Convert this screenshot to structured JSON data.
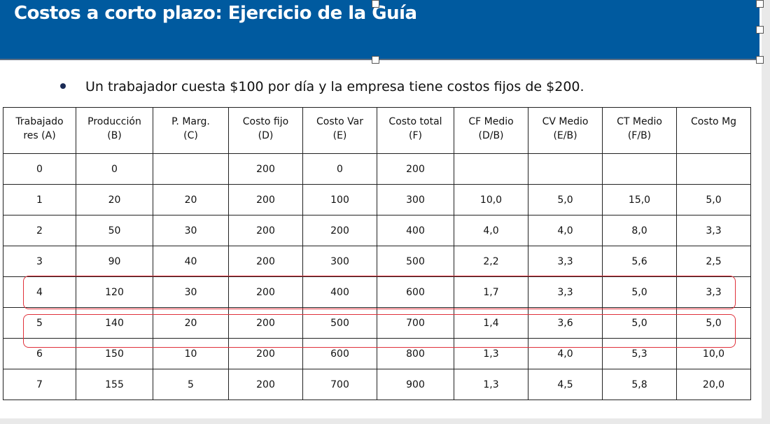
{
  "title": "Costos a corto plazo: Ejercicio de la Guía",
  "bullet": "Un trabajador cuesta $100 por día y la empresa tiene costos fijos de $200.",
  "colors": {
    "title_bar": "#005a9f",
    "highlight": "#e0303a"
  },
  "table": {
    "headers": [
      [
        "Trabajado",
        "res (A)"
      ],
      [
        "Producción",
        "(B)"
      ],
      [
        "P. Marg.",
        "(C)"
      ],
      [
        "Costo fijo",
        "(D)"
      ],
      [
        "Costo Var",
        "(E)"
      ],
      [
        "Costo total",
        "(F)"
      ],
      [
        "CF Medio",
        "(D/B)"
      ],
      [
        "CV Medio",
        "(E/B)"
      ],
      [
        "CT Medio",
        "(F/B)"
      ],
      [
        "Costo Mg",
        ""
      ]
    ],
    "rows": [
      [
        "0",
        "0",
        "",
        "200",
        "0",
        "200",
        "",
        "",
        "",
        ""
      ],
      [
        "1",
        "20",
        "20",
        "200",
        "100",
        "300",
        "10,0",
        "5,0",
        "15,0",
        "5,0"
      ],
      [
        "2",
        "50",
        "30",
        "200",
        "200",
        "400",
        "4,0",
        "4,0",
        "8,0",
        "3,3"
      ],
      [
        "3",
        "90",
        "40",
        "200",
        "300",
        "500",
        "2,2",
        "3,3",
        "5,6",
        "2,5"
      ],
      [
        "4",
        "120",
        "30",
        "200",
        "400",
        "600",
        "1,7",
        "3,3",
        "5,0",
        "3,3"
      ],
      [
        "5",
        "140",
        "20",
        "200",
        "500",
        "700",
        "1,4",
        "3,6",
        "5,0",
        "5,0"
      ],
      [
        "6",
        "150",
        "10",
        "200",
        "600",
        "800",
        "1,3",
        "4,0",
        "5,3",
        "10,0"
      ],
      [
        "7",
        "155",
        "5",
        "200",
        "700",
        "900",
        "1,3",
        "4,5",
        "5,8",
        "20,0"
      ]
    ],
    "highlighted_rows": [
      "4",
      "5"
    ]
  }
}
